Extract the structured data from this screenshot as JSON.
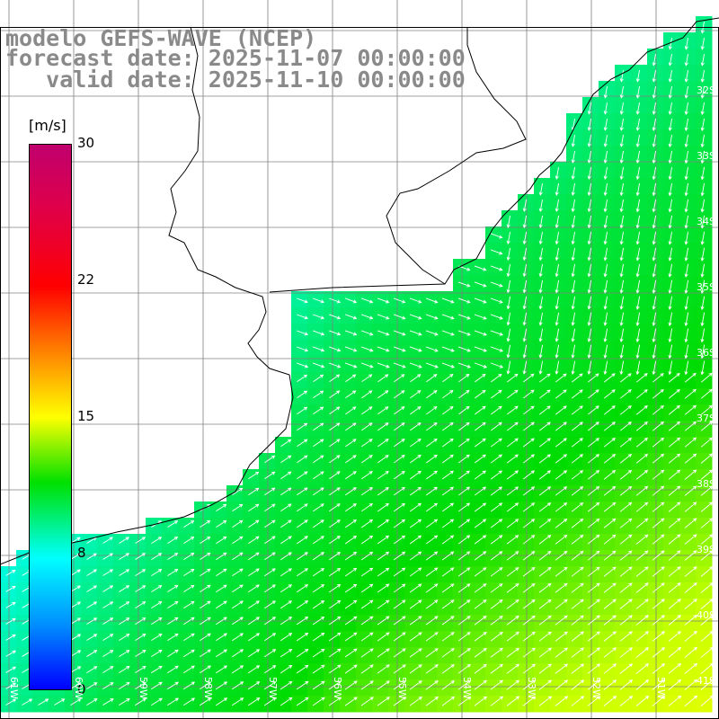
{
  "title": {
    "line1": "modelo GEFS-WAVE (NCEP)",
    "line2": "forecast date: 2025-11-07 00:00:00",
    "line3": "   valid date: 2025-11-10 00:00:00"
  },
  "colorbar": {
    "unit": "[m/s]",
    "ticks": [
      "30",
      "22",
      "15",
      "8",
      "0"
    ],
    "tick_values": [
      30,
      22,
      15,
      8,
      0
    ],
    "colors": [
      "#c0006e",
      "#ff0000",
      "#ffff00",
      "#00e000",
      "#00ffff",
      "#0000ff"
    ]
  },
  "map": {
    "lat_labels": [
      "32S",
      "33S",
      "34S",
      "35S",
      "36S",
      "37S",
      "38S",
      "39S",
      "40S",
      "41S"
    ],
    "lon_labels": [
      "61W",
      "60W",
      "59W",
      "58W",
      "57W",
      "56W",
      "55W",
      "54W",
      "53W",
      "52W",
      "51W"
    ],
    "lat_range": [
      -41.5,
      -30.5
    ],
    "lon_range": [
      -61.5,
      -50.5
    ],
    "grid": true,
    "land_color": "#ffffff",
    "coast_color": "#000000",
    "grid_color": "#808080",
    "arrow_color": "#ffffff"
  }
}
